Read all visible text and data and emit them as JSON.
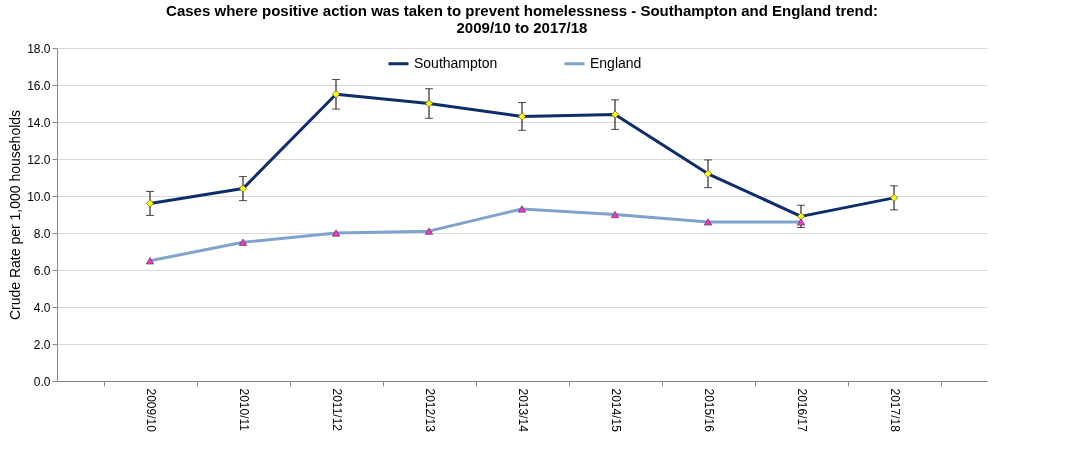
{
  "chart_data": {
    "type": "line",
    "title": "Cases where positive action was taken to prevent homelessness - Southampton and England trend: 2009/10 to 2017/18",
    "ylabel": "Crude Rate per 1,000 households",
    "categories": [
      "2009/10",
      "2010/11",
      "2011/12",
      "2012/13",
      "2013/14",
      "2014/15",
      "2015/16",
      "2016/17",
      "2017/18"
    ],
    "series": [
      {
        "name": "Southampton",
        "color": "#0e2d6b",
        "marker": "diamond",
        "values": [
          9.6,
          10.4,
          15.5,
          15.0,
          14.3,
          14.4,
          11.2,
          8.9,
          9.9
        ],
        "errors": [
          0.65,
          0.65,
          0.8,
          0.8,
          0.75,
          0.8,
          0.75,
          0.6,
          0.65
        ]
      },
      {
        "name": "England",
        "color": "#7fa3cc",
        "marker": "triangle",
        "values": [
          6.5,
          7.5,
          8.0,
          8.1,
          9.3,
          9.0,
          8.6,
          8.6,
          null
        ]
      }
    ],
    "ylim": [
      0,
      18
    ],
    "yticks": [
      {
        "value": 0,
        "label": "0.0"
      },
      {
        "value": 2,
        "label": "2.0"
      },
      {
        "value": 4,
        "label": "4.0"
      },
      {
        "value": 6,
        "label": "6.0"
      },
      {
        "value": 8,
        "label": "8.0"
      },
      {
        "value": 10,
        "label": "10.0"
      },
      {
        "value": 12,
        "label": "12.0"
      },
      {
        "value": 14,
        "label": "14.0"
      },
      {
        "value": 16,
        "label": "16.0"
      },
      {
        "value": 18,
        "label": "18.0"
      }
    ],
    "grid": "y",
    "legend": "top",
    "line_style": "solid"
  }
}
